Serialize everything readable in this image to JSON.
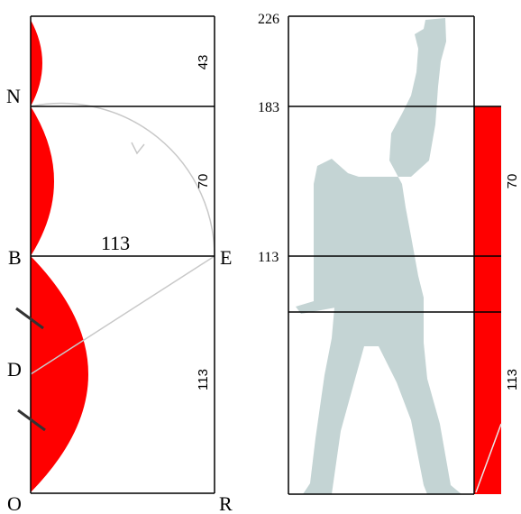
{
  "left_panel": {
    "point_labels": {
      "N": "N",
      "B": "B",
      "D": "D",
      "O": "O",
      "E": "E",
      "R": "R"
    },
    "dimension_top": "43",
    "dimension_mid": "70",
    "dimension_bottom": "113",
    "dimension_width": "113"
  },
  "right_panel": {
    "tick_top": "226",
    "tick_upper": "183",
    "tick_middle": "113",
    "bar_label_upper": "70",
    "bar_label_lower": "113"
  },
  "colors": {
    "accent_red": "#ff0000",
    "figure_gray": "#c4d4d4",
    "line_gray": "#c8c8c8",
    "ink": "#000000"
  }
}
